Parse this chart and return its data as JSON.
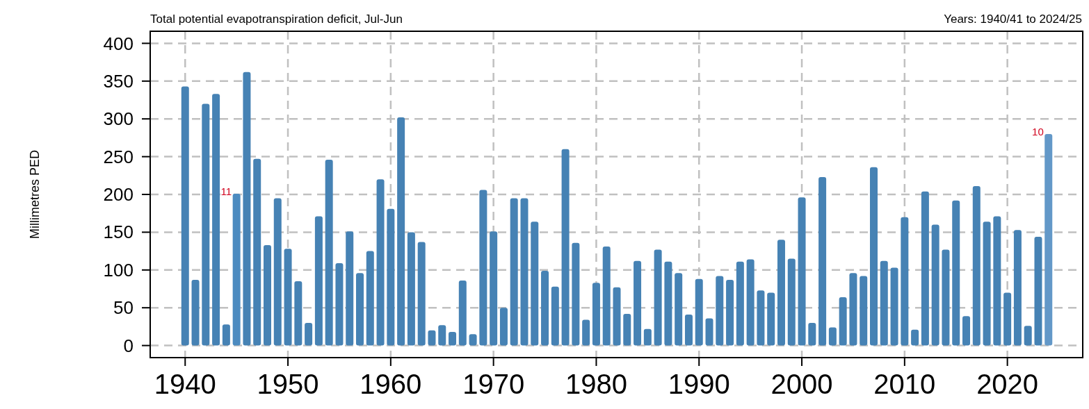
{
  "chart_data": {
    "type": "bar",
    "title": "Total potential evapotranspiration deficit, Jul-Jun",
    "subtitle": "Years: 1940/41 to 2024/25",
    "ylabel": "Millimetres PED",
    "x": [
      1940,
      1941,
      1942,
      1943,
      1944,
      1945,
      1946,
      1947,
      1948,
      1949,
      1950,
      1951,
      1952,
      1953,
      1954,
      1955,
      1956,
      1957,
      1958,
      1959,
      1960,
      1961,
      1962,
      1963,
      1964,
      1965,
      1966,
      1967,
      1968,
      1969,
      1970,
      1971,
      1972,
      1973,
      1974,
      1975,
      1976,
      1977,
      1978,
      1979,
      1980,
      1981,
      1982,
      1983,
      1984,
      1985,
      1986,
      1987,
      1988,
      1989,
      1990,
      1991,
      1992,
      1993,
      1994,
      1995,
      1996,
      1997,
      1998,
      1999,
      2000,
      2001,
      2002,
      2003,
      2004,
      2005,
      2006,
      2007,
      2008,
      2009,
      2010,
      2011,
      2012,
      2013,
      2014,
      2015,
      2016,
      2017,
      2018,
      2019,
      2020,
      2021,
      2022,
      2023,
      2024
    ],
    "values": [
      343,
      87,
      320,
      333,
      28,
      201,
      362,
      247,
      133,
      195,
      128,
      85,
      30,
      171,
      246,
      109,
      151,
      96,
      125,
      220,
      181,
      302,
      150,
      137,
      20,
      27,
      18,
      86,
      15,
      206,
      151,
      50,
      195,
      195,
      164,
      99,
      78,
      260,
      136,
      34,
      83,
      131,
      77,
      42,
      112,
      22,
      127,
      111,
      96,
      41,
      88,
      36,
      92,
      87,
      111,
      114,
      73,
      70,
      140,
      115,
      196,
      30,
      223,
      24,
      64,
      96,
      92,
      236,
      112,
      103,
      170,
      21,
      204,
      160,
      127,
      192,
      39,
      211,
      164,
      171,
      70,
      153,
      26,
      144,
      280
    ],
    "colors": [
      "#4682b4",
      "#4682b4",
      "#4682b4",
      "#4682b4",
      "#4682b4",
      "#4c8bc0",
      "#4682b4",
      "#4682b4",
      "#4682b4",
      "#4682b4",
      "#4682b4",
      "#4682b4",
      "#4682b4",
      "#4682b4",
      "#4682b4",
      "#4682b4",
      "#4682b4",
      "#4682b4",
      "#4682b4",
      "#4682b4",
      "#4682b4",
      "#4682b4",
      "#4682b4",
      "#4682b4",
      "#4682b4",
      "#4682b4",
      "#4682b4",
      "#4682b4",
      "#4682b4",
      "#4682b4",
      "#4682b4",
      "#4682b4",
      "#4682b4",
      "#4682b4",
      "#4682b4",
      "#4682b4",
      "#4682b4",
      "#4682b4",
      "#4682b4",
      "#4682b4",
      "#4682b4",
      "#4682b4",
      "#4682b4",
      "#4682b4",
      "#4682b4",
      "#4682b4",
      "#4682b4",
      "#4682b4",
      "#4682b4",
      "#4682b4",
      "#4682b4",
      "#4682b4",
      "#4682b4",
      "#4682b4",
      "#4682b4",
      "#4682b4",
      "#4682b4",
      "#4682b4",
      "#4682b4",
      "#4682b4",
      "#4682b4",
      "#4682b4",
      "#4682b4",
      "#4682b4",
      "#4682b4",
      "#4682b4",
      "#4682b4",
      "#4682b4",
      "#4682b4",
      "#4682b4",
      "#4682b4",
      "#4682b4",
      "#4682b4",
      "#4682b4",
      "#4682b4",
      "#4682b4",
      "#4682b4",
      "#4682b4",
      "#4682b4",
      "#4682b4",
      "#4682b4",
      "#4682b4",
      "#4682b4",
      "#4682b4",
      "#6398c8"
    ],
    "xlim": [
      1936.6,
      2027.4
    ],
    "xticks": [
      1940,
      1950,
      1960,
      1970,
      1980,
      1990,
      2000,
      2010,
      2020
    ],
    "ylim": [
      -16,
      416
    ],
    "yticks": [
      0,
      50,
      100,
      150,
      200,
      250,
      300,
      350,
      400
    ],
    "grid": true,
    "annotations": [
      {
        "text": "11",
        "x": 1945,
        "y": 201
      },
      {
        "text": "10",
        "x": 2024,
        "y": 280
      }
    ]
  }
}
